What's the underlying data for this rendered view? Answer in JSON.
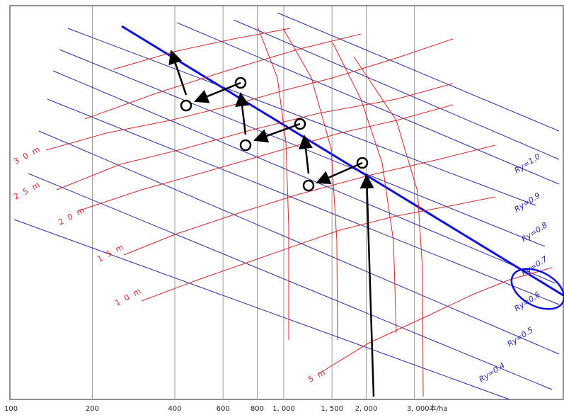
{
  "chart_data": {
    "type": "line",
    "x_scale": "log",
    "x_ticks": [
      {
        "value": 100,
        "label": "100"
      },
      {
        "value": 200,
        "label": "200"
      },
      {
        "value": 400,
        "label": "400"
      },
      {
        "value": 600,
        "label": "600"
      },
      {
        "value": 800,
        "label": "800"
      },
      {
        "value": 1000,
        "label": "1, 000"
      },
      {
        "value": 1500,
        "label": "1, 500"
      },
      {
        "value": 2000,
        "label": "2, 000"
      },
      {
        "value": 3000,
        "label": "3, 000本/ha"
      }
    ],
    "height_curves": [
      {
        "label": "3 0 m",
        "height_m": 30
      },
      {
        "label": "2 5 m",
        "height_m": 25
      },
      {
        "label": "2 0 m",
        "height_m": 20
      },
      {
        "label": "1 5 m",
        "height_m": 15
      },
      {
        "label": "1 0 m",
        "height_m": 10
      },
      {
        "label": "5 m",
        "height_m": 5
      }
    ],
    "ry_lines": [
      {
        "label": "Ry=1.0",
        "ry": 1.0
      },
      {
        "label": "Ry=0.9",
        "ry": 0.9
      },
      {
        "label": "Ry=0.8",
        "ry": 0.8
      },
      {
        "label": "Ry=0.7",
        "ry": 0.7
      },
      {
        "label": "Ry=0.6",
        "ry": 0.6
      },
      {
        "label": "Ry=0.5",
        "ry": 0.5
      },
      {
        "label": "Ry=0.4",
        "ry": 0.4
      }
    ],
    "highlighted_ry": 0.8,
    "grid": true,
    "colors": {
      "height_curve": "#d2262a",
      "ry_line": "#2a2aa8",
      "highlight_line": "#1010e0",
      "grid": "#9a9a9a",
      "markers": "#000000"
    }
  }
}
